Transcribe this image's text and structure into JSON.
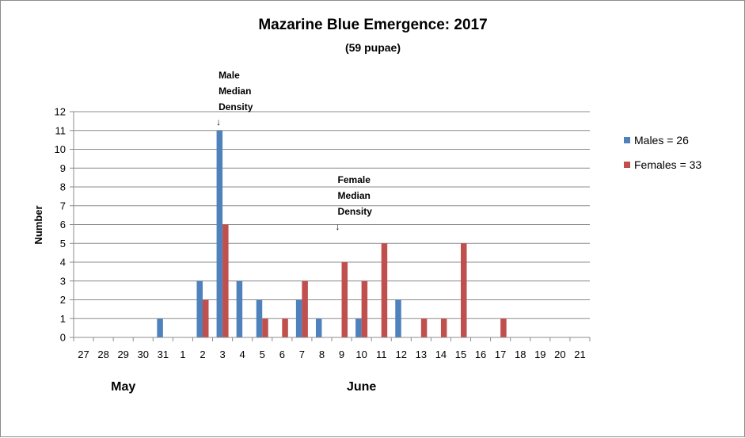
{
  "chart_data": {
    "type": "bar",
    "title": "Mazarine Blue Emergence:  2017",
    "subtitle": "(59 pupae)",
    "ylabel": "Number",
    "ylim": [
      0,
      12
    ],
    "yticks": [
      0,
      1,
      2,
      3,
      4,
      5,
      6,
      7,
      8,
      9,
      10,
      11,
      12
    ],
    "grid": true,
    "legend_position": "right",
    "categories": [
      "27",
      "28",
      "29",
      "30",
      "31",
      "1",
      "2",
      "3",
      "4",
      "5",
      "6",
      "7",
      "8",
      "9",
      "10",
      "11",
      "12",
      "13",
      "14",
      "15",
      "16",
      "17",
      "18",
      "19",
      "20",
      "21"
    ],
    "month_labels": [
      {
        "text": "May",
        "category": "29"
      },
      {
        "text": "June",
        "category": "10"
      }
    ],
    "series": [
      {
        "name": "Males = 26",
        "color": "#4f81bd",
        "values": [
          0,
          0,
          0,
          0,
          1,
          0,
          3,
          11,
          3,
          2,
          0,
          2,
          1,
          0,
          1,
          0,
          2,
          0,
          0,
          0,
          0,
          0,
          0,
          0,
          0,
          0
        ]
      },
      {
        "name": "Females = 33",
        "color": "#c0504d",
        "values": [
          0,
          0,
          0,
          0,
          0,
          0,
          2,
          6,
          0,
          1,
          1,
          3,
          0,
          4,
          3,
          5,
          0,
          1,
          1,
          5,
          0,
          1,
          0,
          0,
          0,
          0
        ]
      }
    ],
    "annotations": [
      {
        "lines": [
          "Male",
          "Median",
          "Density"
        ],
        "arrow": "↓",
        "category": "3"
      },
      {
        "lines": [
          "Female",
          "Median",
          "Density"
        ],
        "arrow": "↓",
        "category": "9"
      }
    ]
  }
}
